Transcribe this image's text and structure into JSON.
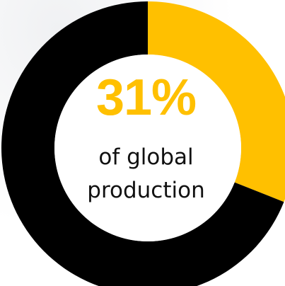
{
  "chart_data": {
    "type": "pie",
    "style": "donut",
    "slices": [
      {
        "label": "",
        "value": 31,
        "color": "#ffc000"
      },
      {
        "label": "",
        "value": 69,
        "color": "#000000"
      }
    ],
    "start_angle": "12 o'clock, clockwise",
    "center_label": {
      "value_text": "31%",
      "caption_line1": "of global",
      "caption_line2": "production"
    }
  },
  "colors": {
    "accent": "#ffc000",
    "ring_rest": "#000000",
    "caption_text": "#111111"
  }
}
